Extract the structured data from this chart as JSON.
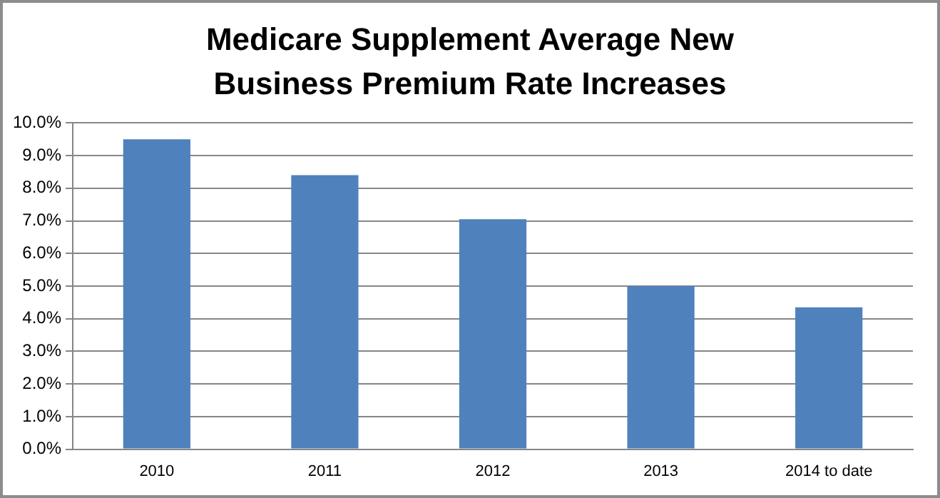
{
  "chart_data": {
    "type": "bar",
    "title": "Medicare Supplement Average New Business Premium Rate Increases",
    "categories": [
      "2010",
      "2011",
      "2012",
      "2013",
      "2014 to date"
    ],
    "values": [
      9.5,
      8.4,
      7.05,
      5.0,
      4.35
    ],
    "color": "#4f81bd",
    "ylim": [
      0,
      10
    ],
    "yticks": [
      {
        "value": 0,
        "label": "0.0%"
      },
      {
        "value": 1,
        "label": "1.0%"
      },
      {
        "value": 2,
        "label": "2.0%"
      },
      {
        "value": 3,
        "label": "3.0%"
      },
      {
        "value": 4,
        "label": "4.0%"
      },
      {
        "value": 5,
        "label": "5.0%"
      },
      {
        "value": 6,
        "label": "6.0%"
      },
      {
        "value": 7,
        "label": "7.0%"
      },
      {
        "value": 8,
        "label": "8.0%"
      },
      {
        "value": 9,
        "label": "9.0%"
      },
      {
        "value": 10,
        "label": "10.0%"
      }
    ],
    "grid": "y",
    "legend": false
  }
}
